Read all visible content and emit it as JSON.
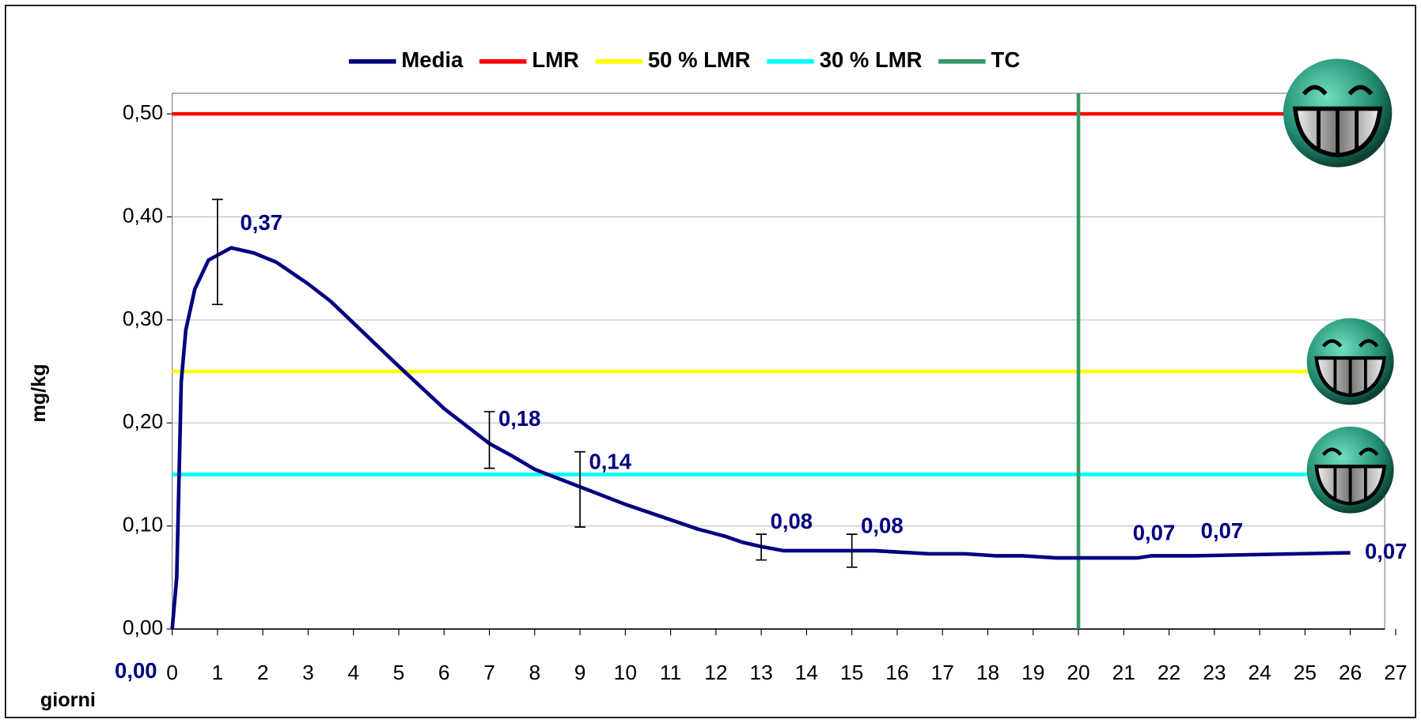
{
  "chart_data": {
    "type": "line",
    "x_label": "giorni",
    "y_label": "mg/kg",
    "xlim": [
      0,
      27
    ],
    "xticks": [
      0,
      1,
      2,
      3,
      4,
      5,
      6,
      7,
      8,
      9,
      10,
      11,
      12,
      13,
      14,
      15,
      16,
      17,
      18,
      19,
      20,
      21,
      22,
      23,
      24,
      25,
      26,
      27
    ],
    "ylim": [
      0,
      0.52
    ],
    "yticks": [
      {
        "value": 0,
        "label": "0,00"
      },
      {
        "value": 0.1,
        "label": "0,10"
      },
      {
        "value": 0.2,
        "label": "0,20"
      },
      {
        "value": 0.3,
        "label": "0,30"
      },
      {
        "value": 0.4,
        "label": "0,40"
      },
      {
        "value": 0.5,
        "label": "0,50"
      }
    ],
    "grid": true,
    "series": [
      {
        "name": "Media",
        "color": "#000080",
        "x": [
          0,
          0.1,
          0.2,
          0.3,
          0.5,
          0.8,
          1.3,
          1.8,
          2.3,
          3,
          3.5,
          4,
          5,
          6,
          7,
          7.5,
          8,
          9,
          10,
          11,
          11.6,
          12.2,
          12.6,
          13,
          13.5,
          15,
          15.5,
          16.7,
          17.5,
          18.2,
          18.8,
          19.5,
          21,
          21.3,
          21.6,
          22.5,
          26
        ],
        "values": [
          0,
          0.05,
          0.24,
          0.29,
          0.33,
          0.358,
          0.37,
          0.365,
          0.356,
          0.335,
          0.318,
          0.297,
          0.255,
          0.214,
          0.18,
          0.168,
          0.155,
          0.138,
          0.121,
          0.106,
          0.097,
          0.09,
          0.084,
          0.08,
          0.076,
          0.076,
          0.076,
          0.073,
          0.073,
          0.071,
          0.071,
          0.069,
          0.069,
          0.069,
          0.071,
          0.071,
          0.074
        ],
        "value_labels": [
          "0,00",
          null,
          null,
          null,
          null,
          null,
          "0,37",
          null,
          null,
          null,
          null,
          null,
          null,
          null,
          "0,18",
          null,
          null,
          "0,14",
          null,
          null,
          null,
          null,
          null,
          "0,08",
          null,
          "0,08",
          null,
          null,
          null,
          null,
          null,
          null,
          "0,07",
          null,
          null,
          "0,07",
          "0,07"
        ]
      },
      {
        "name": "LMR",
        "color": "#ff0000",
        "level": 0.5
      },
      {
        "name": "50 % LMR",
        "color": "#ffff00",
        "level": 0.25
      },
      {
        "name": "30 % LMR",
        "color": "#00ffff",
        "level": 0.15
      },
      {
        "name": "TC",
        "color": "#339966",
        "at_x": 20
      }
    ],
    "error_bars": {
      "x": [
        1,
        7,
        9,
        13,
        15
      ],
      "low": [
        0.315,
        0.156,
        0.099,
        0.067,
        0.06
      ],
      "high": [
        0.417,
        0.211,
        0.172,
        0.092,
        0.092
      ]
    }
  }
}
